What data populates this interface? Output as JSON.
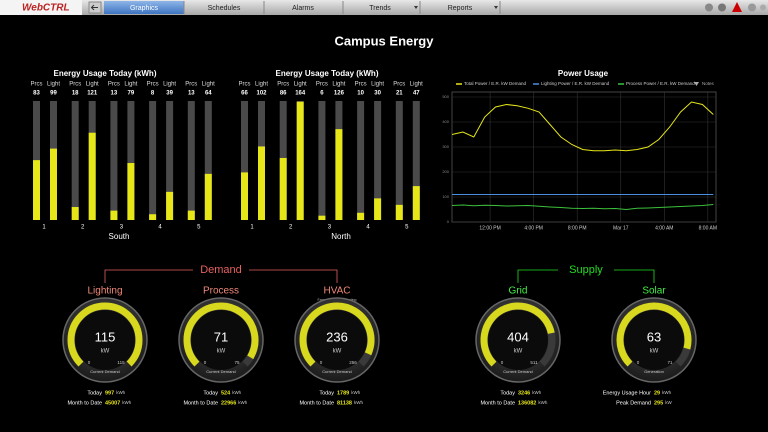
{
  "header": {
    "logo": "WebCTRL",
    "tabs": [
      "Graphics",
      "Schedules",
      "Alarms",
      "Trends",
      "Reports"
    ]
  },
  "title": "Campus Energy",
  "energy_charts": [
    {
      "type": "bar",
      "title": "Energy Usage Today  (kWh)",
      "group": "South",
      "ylim": [
        0,
        165
      ],
      "categories": [
        "1",
        "2",
        "3",
        "4",
        "5"
      ],
      "series": [
        {
          "name": "Prcs",
          "color": "#e6e619",
          "values": [
            83,
            18,
            13,
            8,
            13
          ]
        },
        {
          "name": "Light",
          "color": "#e6e619",
          "values": [
            99,
            121,
            79,
            39,
            64
          ]
        }
      ]
    },
    {
      "type": "bar",
      "title": "Energy Usage Today  (kWh)",
      "group": "North",
      "ylim": [
        0,
        165
      ],
      "categories": [
        "1",
        "2",
        "3",
        "4",
        "5"
      ],
      "series": [
        {
          "name": "Prcs",
          "color": "#e6e619",
          "values": [
            66,
            86,
            6,
            10,
            21
          ]
        },
        {
          "name": "Light",
          "color": "#e6e619",
          "values": [
            102,
            164,
            126,
            30,
            47
          ]
        }
      ]
    }
  ],
  "power_chart": {
    "type": "line",
    "title": "Power Usage",
    "notes": "Notes",
    "x": [
      0,
      1,
      2,
      3,
      4,
      5,
      6,
      7,
      8,
      9,
      10,
      11,
      12,
      13,
      14,
      15,
      16,
      17,
      18,
      19,
      20,
      21,
      22,
      23,
      24
    ],
    "xlim": [
      0,
      24.25
    ],
    "xticks": [
      {
        "value": 3.5,
        "label": "12:00 PM"
      },
      {
        "value": 7.5,
        "label": "4:00 PM"
      },
      {
        "value": 11.5,
        "label": "8:00 PM"
      },
      {
        "value": 15.5,
        "label": "Mar 17"
      },
      {
        "value": 19.5,
        "label": "4:00 AM"
      },
      {
        "value": 23.5,
        "label": "8:00 AM"
      }
    ],
    "ylim": [
      0,
      520
    ],
    "yticks": [
      0,
      100,
      200,
      300,
      400,
      500
    ],
    "grid": true,
    "series": [
      {
        "name": "Total Power / E.R. kW Demand",
        "color": "#e6e619",
        "values": [
          350,
          360,
          340,
          420,
          460,
          470,
          465,
          455,
          440,
          390,
          340,
          310,
          290,
          285,
          285,
          288,
          285,
          290,
          300,
          330,
          380,
          440,
          480,
          470,
          430
        ]
      },
      {
        "name": "Lighting Power / E.R. kW Demand",
        "color": "#4a8fe0",
        "values": [
          110,
          110,
          110,
          110,
          110,
          110,
          110,
          110,
          110,
          110,
          110,
          110,
          110,
          110,
          110,
          110,
          110,
          110,
          110,
          110,
          110,
          110,
          110,
          110,
          110
        ]
      },
      {
        "name": "Process Power / E.R. kW Demand",
        "color": "#3cc23c",
        "values": [
          66,
          68,
          65,
          67,
          66,
          64,
          65,
          66,
          63,
          60,
          58,
          55,
          54,
          55,
          53,
          54,
          50,
          55,
          56,
          58,
          60,
          62,
          64,
          66,
          70
        ]
      }
    ]
  },
  "demand": {
    "label": "Demand",
    "gauges": [
      {
        "name": "Lighting",
        "value": 115,
        "unit": "kW",
        "min": 0,
        "max": 115,
        "caption": "Current Demand",
        "stats": [
          {
            "label": "Today",
            "value": 997,
            "unit": "kWh"
          },
          {
            "label": "Month to Date",
            "value": 45007,
            "unit": "kWh"
          }
        ]
      },
      {
        "name": "Process",
        "value": 71,
        "unit": "kW",
        "min": 0,
        "max": 75,
        "caption": "Current Demand",
        "stats": [
          {
            "label": "Today",
            "value": 524,
            "unit": "kWh"
          },
          {
            "label": "Month to Date",
            "value": 22966,
            "unit": "kWh"
          }
        ]
      },
      {
        "name": "HVAC",
        "subtitle": "Fans, Cooling, & Heating",
        "value": 236,
        "unit": "kW",
        "min": 0,
        "max": 256,
        "caption": "Current Demand",
        "stats": [
          {
            "label": "Today",
            "value": 1789,
            "unit": "kWh"
          },
          {
            "label": "Month to Date",
            "value": 81138,
            "unit": "kWh"
          }
        ]
      }
    ]
  },
  "supply": {
    "label": "Supply",
    "gauges": [
      {
        "name": "Grid",
        "value": 404,
        "unit": "kW",
        "min": 0,
        "max": 511,
        "caption": "Current Demand",
        "stats": [
          {
            "label": "Today",
            "value": 3246,
            "unit": "kWh"
          },
          {
            "label": "Month to Date",
            "value": 136082,
            "unit": "kWh"
          }
        ]
      },
      {
        "name": "Solar",
        "value": 63,
        "unit": "kW",
        "min": 0,
        "max": 71,
        "caption": "Generation",
        "stats": [
          {
            "label": "Energy Usage Hour",
            "value": 29,
            "unit": "kWh"
          },
          {
            "label": "Peak Demand",
            "value": 295,
            "unit": "kW"
          }
        ]
      }
    ]
  }
}
